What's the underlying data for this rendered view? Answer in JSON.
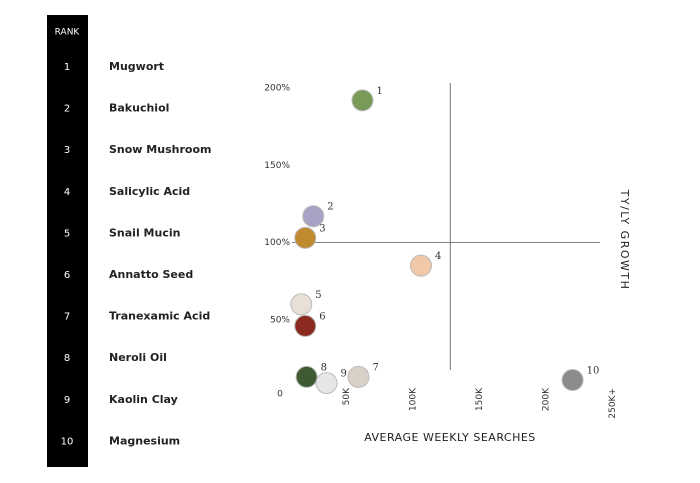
{
  "chart_data": {
    "type": "scatter",
    "rank_header": "RANK",
    "ranks": [
      1,
      2,
      3,
      4,
      5,
      6,
      7,
      8,
      9,
      10
    ],
    "categories": [
      "Mugwort",
      "Bakuchiol",
      "Snow Mushroom",
      "Salicylic Acid",
      "Snail Mucin",
      "Annatto Seed",
      "Tranexamic Acid",
      "Neroli Oil",
      "Kaolin Clay",
      "Magnesium"
    ],
    "x_label": "AVERAGE WEEKLY SEARCHES",
    "y_label": "TY/LY GROWTH",
    "x": [
      62000,
      25000,
      19000,
      106000,
      16000,
      19000,
      59000,
      20000,
      35000,
      220000
    ],
    "values": [
      192,
      117,
      103,
      85,
      60,
      46,
      13,
      13,
      9,
      11
    ],
    "colors": [
      "#7a9a5a",
      "#a8a3c4",
      "#c08a2e",
      "#f1c9a8",
      "#e8e0d6",
      "#8b2a1e",
      "#d9d0c8",
      "#3f5a32",
      "#e6e6e6",
      "#8c8c8c"
    ],
    "xlim": [
      0,
      250000
    ],
    "ylim": [
      0,
      200
    ],
    "xticks": [
      0,
      {
        "value": 50000,
        "label": "50K"
      },
      {
        "value": 100000,
        "label": "100K"
      },
      {
        "value": 150000,
        "label": "150K"
      },
      {
        "value": 200000,
        "label": "200K"
      },
      {
        "value": 250000,
        "label": "250K+"
      }
    ],
    "yticks": [
      {
        "value": 50,
        "label": "50%"
      },
      {
        "value": 100,
        "label": "100%"
      },
      {
        "value": 150,
        "label": "150%"
      },
      {
        "value": 200,
        "label": "200%"
      }
    ],
    "crosshair": {
      "x": 128000,
      "y": 100
    }
  }
}
